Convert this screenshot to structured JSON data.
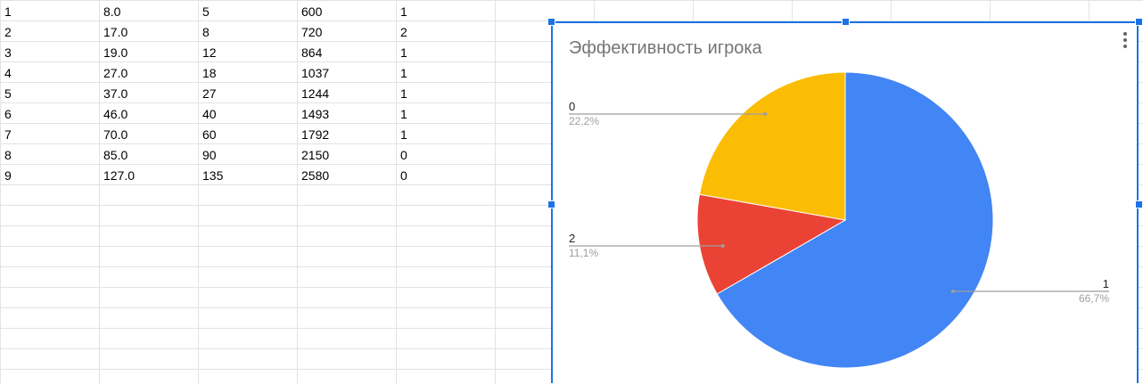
{
  "sheet": {
    "rows": [
      [
        "1",
        "8.0",
        "5",
        "600",
        "1"
      ],
      [
        "2",
        "17.0",
        "8",
        "720",
        "2"
      ],
      [
        "3",
        "19.0",
        "12",
        "864",
        "1"
      ],
      [
        "4",
        "27.0",
        "18",
        "1037",
        "1"
      ],
      [
        "5",
        "37.0",
        "27",
        "1244",
        "1"
      ],
      [
        "6",
        "46.0",
        "40",
        "1493",
        "1"
      ],
      [
        "7",
        "70.0",
        "60",
        "1792",
        "1"
      ],
      [
        "8",
        "85.0",
        "90",
        "2150",
        "0"
      ],
      [
        "9",
        "127.0",
        "135",
        "2580",
        "0"
      ]
    ]
  },
  "chart_data": {
    "type": "pie",
    "title": "Эффективность игрока",
    "slices": [
      {
        "label": "1",
        "value": 6,
        "percent_label": "66,7%",
        "color": "#4285f4"
      },
      {
        "label": "2",
        "value": 1,
        "percent_label": "11,1%",
        "color": "#ea4335"
      },
      {
        "label": "0",
        "value": 2,
        "percent_label": "22,2%",
        "color": "#fbbc04"
      }
    ],
    "start_angle_deg": 0,
    "direction": "clockwise",
    "legend": "labels"
  },
  "colors": {
    "selection": "#1a73e8",
    "gridline": "#e2e3e3",
    "title": "#757575"
  },
  "icons": {
    "chart_menu": "more-vert-icon"
  }
}
